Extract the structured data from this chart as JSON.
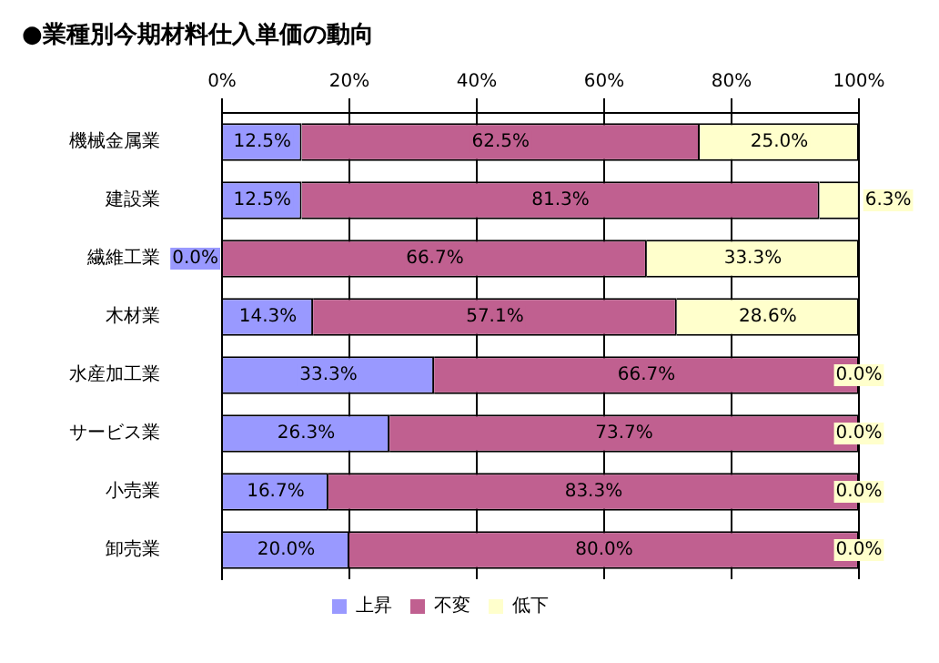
{
  "chart_data": {
    "type": "bar",
    "orientation": "horizontal",
    "stacked": true,
    "title": "●業種別今期材料仕入単価の動向",
    "categories": [
      "機械金属業",
      "建設業",
      "繊維工業",
      "木材業",
      "水産加工業",
      "サービス業",
      "小売業",
      "卸売業"
    ],
    "series": [
      {
        "name": "上昇",
        "color": "#9999ff",
        "values": [
          12.5,
          12.5,
          0.0,
          14.3,
          33.3,
          26.3,
          16.7,
          20.0
        ],
        "value_labels": [
          "12.5%",
          "12.5%",
          "0.0%",
          "14.3%",
          "33.3%",
          "26.3%",
          "16.7%",
          "20.0%"
        ]
      },
      {
        "name": "不変",
        "color": "#c06090",
        "values": [
          62.5,
          81.3,
          66.7,
          57.1,
          66.7,
          73.7,
          83.3,
          80.0
        ],
        "value_labels": [
          "62.5%",
          "81.3%",
          "66.7%",
          "57.1%",
          "66.7%",
          "73.7%",
          "83.3%",
          "80.0%"
        ]
      },
      {
        "name": "低下",
        "color": "#ffffcc",
        "values": [
          25.0,
          6.3,
          33.3,
          28.6,
          0.0,
          0.0,
          0.0,
          0.0
        ],
        "value_labels": [
          "25.0%",
          "6.3%",
          "33.3%",
          "28.6%",
          "0.0%",
          "0.0%",
          "0.0%",
          "0.0%"
        ]
      }
    ],
    "xlim": [
      0,
      100
    ],
    "xticks": [
      {
        "value": 0,
        "label": "0%"
      },
      {
        "value": 20,
        "label": "20%"
      },
      {
        "value": 40,
        "label": "40%"
      },
      {
        "value": 60,
        "label": "60%"
      },
      {
        "value": 80,
        "label": "80%"
      },
      {
        "value": 100,
        "label": "100%"
      }
    ],
    "grid": "x",
    "legend": "bottom"
  }
}
